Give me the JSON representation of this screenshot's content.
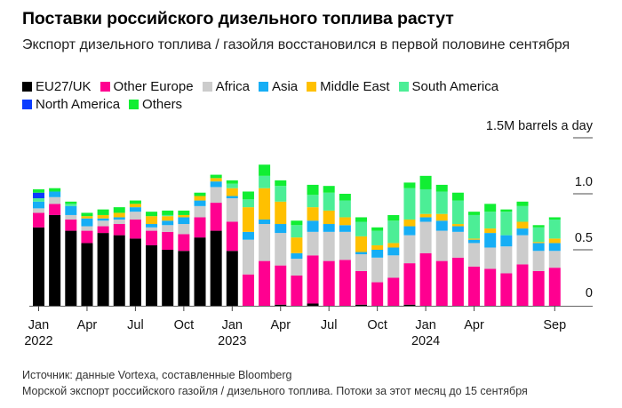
{
  "header": {
    "title": "Поставки российского дизельного топлива растут",
    "subtitle": "Экспорт дизельного топлива / газойля восстановился в первой половине сентября"
  },
  "footer": {
    "source": "Источник: данные Vortexa, составленные Bloomberg",
    "note": "Морской экспорт российского газойля / дизельного топлива. Потоки за этот месяц до 15 сентября"
  },
  "chart_data": {
    "type": "bar",
    "stacked": true,
    "title": "Поставки российского дизельного топлива растут",
    "subtitle": "Экспорт дизельного топлива / газойля восстановился в первой половине сентября",
    "xlabel": "",
    "ylabel": "1.5M barrels a day",
    "unit": "million barrels per day",
    "ylim": [
      0,
      1.5
    ],
    "yticks": [
      {
        "value": 0,
        "label": "0"
      },
      {
        "value": 0.5,
        "label": "0.5"
      },
      {
        "value": 1.0,
        "label": "1.0"
      },
      {
        "value": 1.5,
        "label": "1.5M barrels a day"
      }
    ],
    "grid": false,
    "legend_position": "top-left",
    "categories": [
      "2022-01",
      "2022-02",
      "2022-03",
      "2022-04",
      "2022-05",
      "2022-06",
      "2022-07",
      "2022-08",
      "2022-09",
      "2022-10",
      "2022-11",
      "2022-12",
      "2023-01",
      "2023-02",
      "2023-03",
      "2023-04",
      "2023-05",
      "2023-06",
      "2023-07",
      "2023-08",
      "2023-09",
      "2023-10",
      "2023-11",
      "2023-12",
      "2024-01",
      "2024-02",
      "2024-03",
      "2024-04",
      "2024-05",
      "2024-06",
      "2024-07",
      "2024-08",
      "2024-09"
    ],
    "xticks": [
      {
        "index": 0,
        "label": "Jan",
        "sublabel": "2022"
      },
      {
        "index": 3,
        "label": "Apr",
        "sublabel": ""
      },
      {
        "index": 6,
        "label": "Jul",
        "sublabel": ""
      },
      {
        "index": 9,
        "label": "Oct",
        "sublabel": ""
      },
      {
        "index": 12,
        "label": "Jan",
        "sublabel": "2023"
      },
      {
        "index": 15,
        "label": "Apr",
        "sublabel": ""
      },
      {
        "index": 18,
        "label": "Jul",
        "sublabel": ""
      },
      {
        "index": 21,
        "label": "Oct",
        "sublabel": ""
      },
      {
        "index": 24,
        "label": "Jan",
        "sublabel": "2024"
      },
      {
        "index": 27,
        "label": "Apr",
        "sublabel": ""
      },
      {
        "index": 32,
        "label": "Sep",
        "sublabel": ""
      }
    ],
    "series": [
      {
        "name": "EU27/UK",
        "color": "#000000",
        "values": [
          0.7,
          0.81,
          0.67,
          0.56,
          0.65,
          0.63,
          0.6,
          0.54,
          0.5,
          0.49,
          0.61,
          0.67,
          0.49,
          0,
          0,
          0.01,
          0,
          0.02,
          0,
          0,
          0.01,
          0,
          0,
          0.01,
          0,
          0,
          0,
          0,
          0,
          0,
          0,
          0,
          0
        ]
      },
      {
        "name": "Other Europe",
        "color": "#ff0090",
        "values": [
          0.13,
          0.1,
          0.1,
          0.11,
          0.06,
          0.1,
          0.17,
          0.13,
          0.16,
          0.15,
          0.18,
          0.25,
          0.26,
          0.28,
          0.4,
          0.35,
          0.27,
          0.43,
          0.4,
          0.41,
          0.3,
          0.21,
          0.25,
          0.37,
          0.47,
          0.4,
          0.43,
          0.35,
          0.33,
          0.29,
          0.37,
          0.31,
          0.34
        ]
      },
      {
        "name": "Africa",
        "color": "#cccccc",
        "values": [
          0.04,
          0.06,
          0.04,
          0.04,
          0.05,
          0.04,
          0.07,
          0.03,
          0.06,
          0.09,
          0.1,
          0.14,
          0.21,
          0.31,
          0.33,
          0.29,
          0.15,
          0.21,
          0.26,
          0.25,
          0.15,
          0.22,
          0.2,
          0.25,
          0.28,
          0.27,
          0.23,
          0.21,
          0.19,
          0.24,
          0.26,
          0.18,
          0.15
        ]
      },
      {
        "name": "Asia",
        "color": "#16aef5",
        "values": [
          0.06,
          0.05,
          0.08,
          0.07,
          0.02,
          0.02,
          0.04,
          0.03,
          0.04,
          0.06,
          0.05,
          0.05,
          0.02,
          0.07,
          0.04,
          0.08,
          0.05,
          0.1,
          0.07,
          0.06,
          0.02,
          0.07,
          0.07,
          0.08,
          0.04,
          0.09,
          0.05,
          0.03,
          0.13,
          0.1,
          0.06,
          0.07,
          0.07
        ]
      },
      {
        "name": "Middle East",
        "color": "#ffc000",
        "values": [
          0,
          0,
          0,
          0.02,
          0.03,
          0.04,
          0.03,
          0.07,
          0.04,
          0.02,
          0.04,
          0.03,
          0.07,
          0.22,
          0.28,
          0.2,
          0.14,
          0.12,
          0.12,
          0.07,
          0.14,
          0.04,
          0.04,
          0.06,
          0.03,
          0.06,
          0.02,
          0.01,
          0.04,
          0,
          0.06,
          0.01,
          0.04
        ]
      },
      {
        "name": "South America",
        "color": "#4cee96",
        "values": [
          0.03,
          0,
          0.02,
          0,
          0,
          0,
          0,
          0,
          0.01,
          0,
          0,
          0,
          0.04,
          0.07,
          0.11,
          0.14,
          0.11,
          0.11,
          0.16,
          0.15,
          0.13,
          0.13,
          0.2,
          0.28,
          0.22,
          0.2,
          0.21,
          0.21,
          0.15,
          0.21,
          0.14,
          0.13,
          0.17
        ]
      },
      {
        "name": "North America",
        "color": "#0a3cff",
        "values": [
          0.05,
          0,
          0,
          0,
          0,
          0,
          0,
          0,
          0,
          0,
          0,
          0,
          0,
          0,
          0,
          0,
          0,
          0,
          0,
          0,
          0,
          0,
          0,
          0,
          0,
          0,
          0,
          0,
          0,
          0,
          0,
          0,
          0
        ]
      },
      {
        "name": "Others",
        "color": "#11ee33",
        "values": [
          0.03,
          0.03,
          0.02,
          0.03,
          0.05,
          0.05,
          0.03,
          0.04,
          0.04,
          0.04,
          0.03,
          0.03,
          0.03,
          0.07,
          0.1,
          0.05,
          0.04,
          0.09,
          0.06,
          0.06,
          0.04,
          0.03,
          0.05,
          0.05,
          0.12,
          0.06,
          0.07,
          0.03,
          0.07,
          0.02,
          0.04,
          0.02,
          0.02
        ]
      }
    ]
  }
}
